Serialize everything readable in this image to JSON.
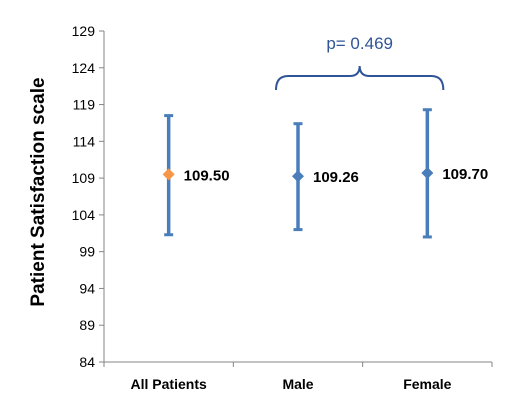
{
  "chart_data": {
    "type": "scatter",
    "ylabel": "Patient Satisfaction scale",
    "xlabel": "",
    "categories": [
      "All Patients",
      "Male",
      "Female"
    ],
    "series": [
      {
        "values": [
          109.5,
          109.26,
          109.7
        ],
        "lower": [
          101.3,
          102.0,
          101.0
        ],
        "upper": [
          117.5,
          116.4,
          118.3
        ],
        "point_colors": [
          "#f79646",
          "#4a7ebb",
          "#4a7ebb"
        ],
        "data_labels": [
          "109.50",
          "109.26",
          "109.70"
        ]
      }
    ],
    "ylim": [
      84,
      129
    ],
    "yticks": [
      84,
      89,
      94,
      99,
      104,
      109,
      114,
      119,
      124,
      129
    ],
    "ytick_labels": [
      "84",
      "89",
      "94",
      "99",
      "104",
      "109",
      "114",
      "119",
      "124",
      "129"
    ],
    "errorbar_color": "#4a7ebb",
    "annotation": {
      "text": "p= 0.469",
      "spans": [
        "Male",
        "Female"
      ],
      "color": "#2f5597"
    },
    "grid": false,
    "legend": "none"
  }
}
